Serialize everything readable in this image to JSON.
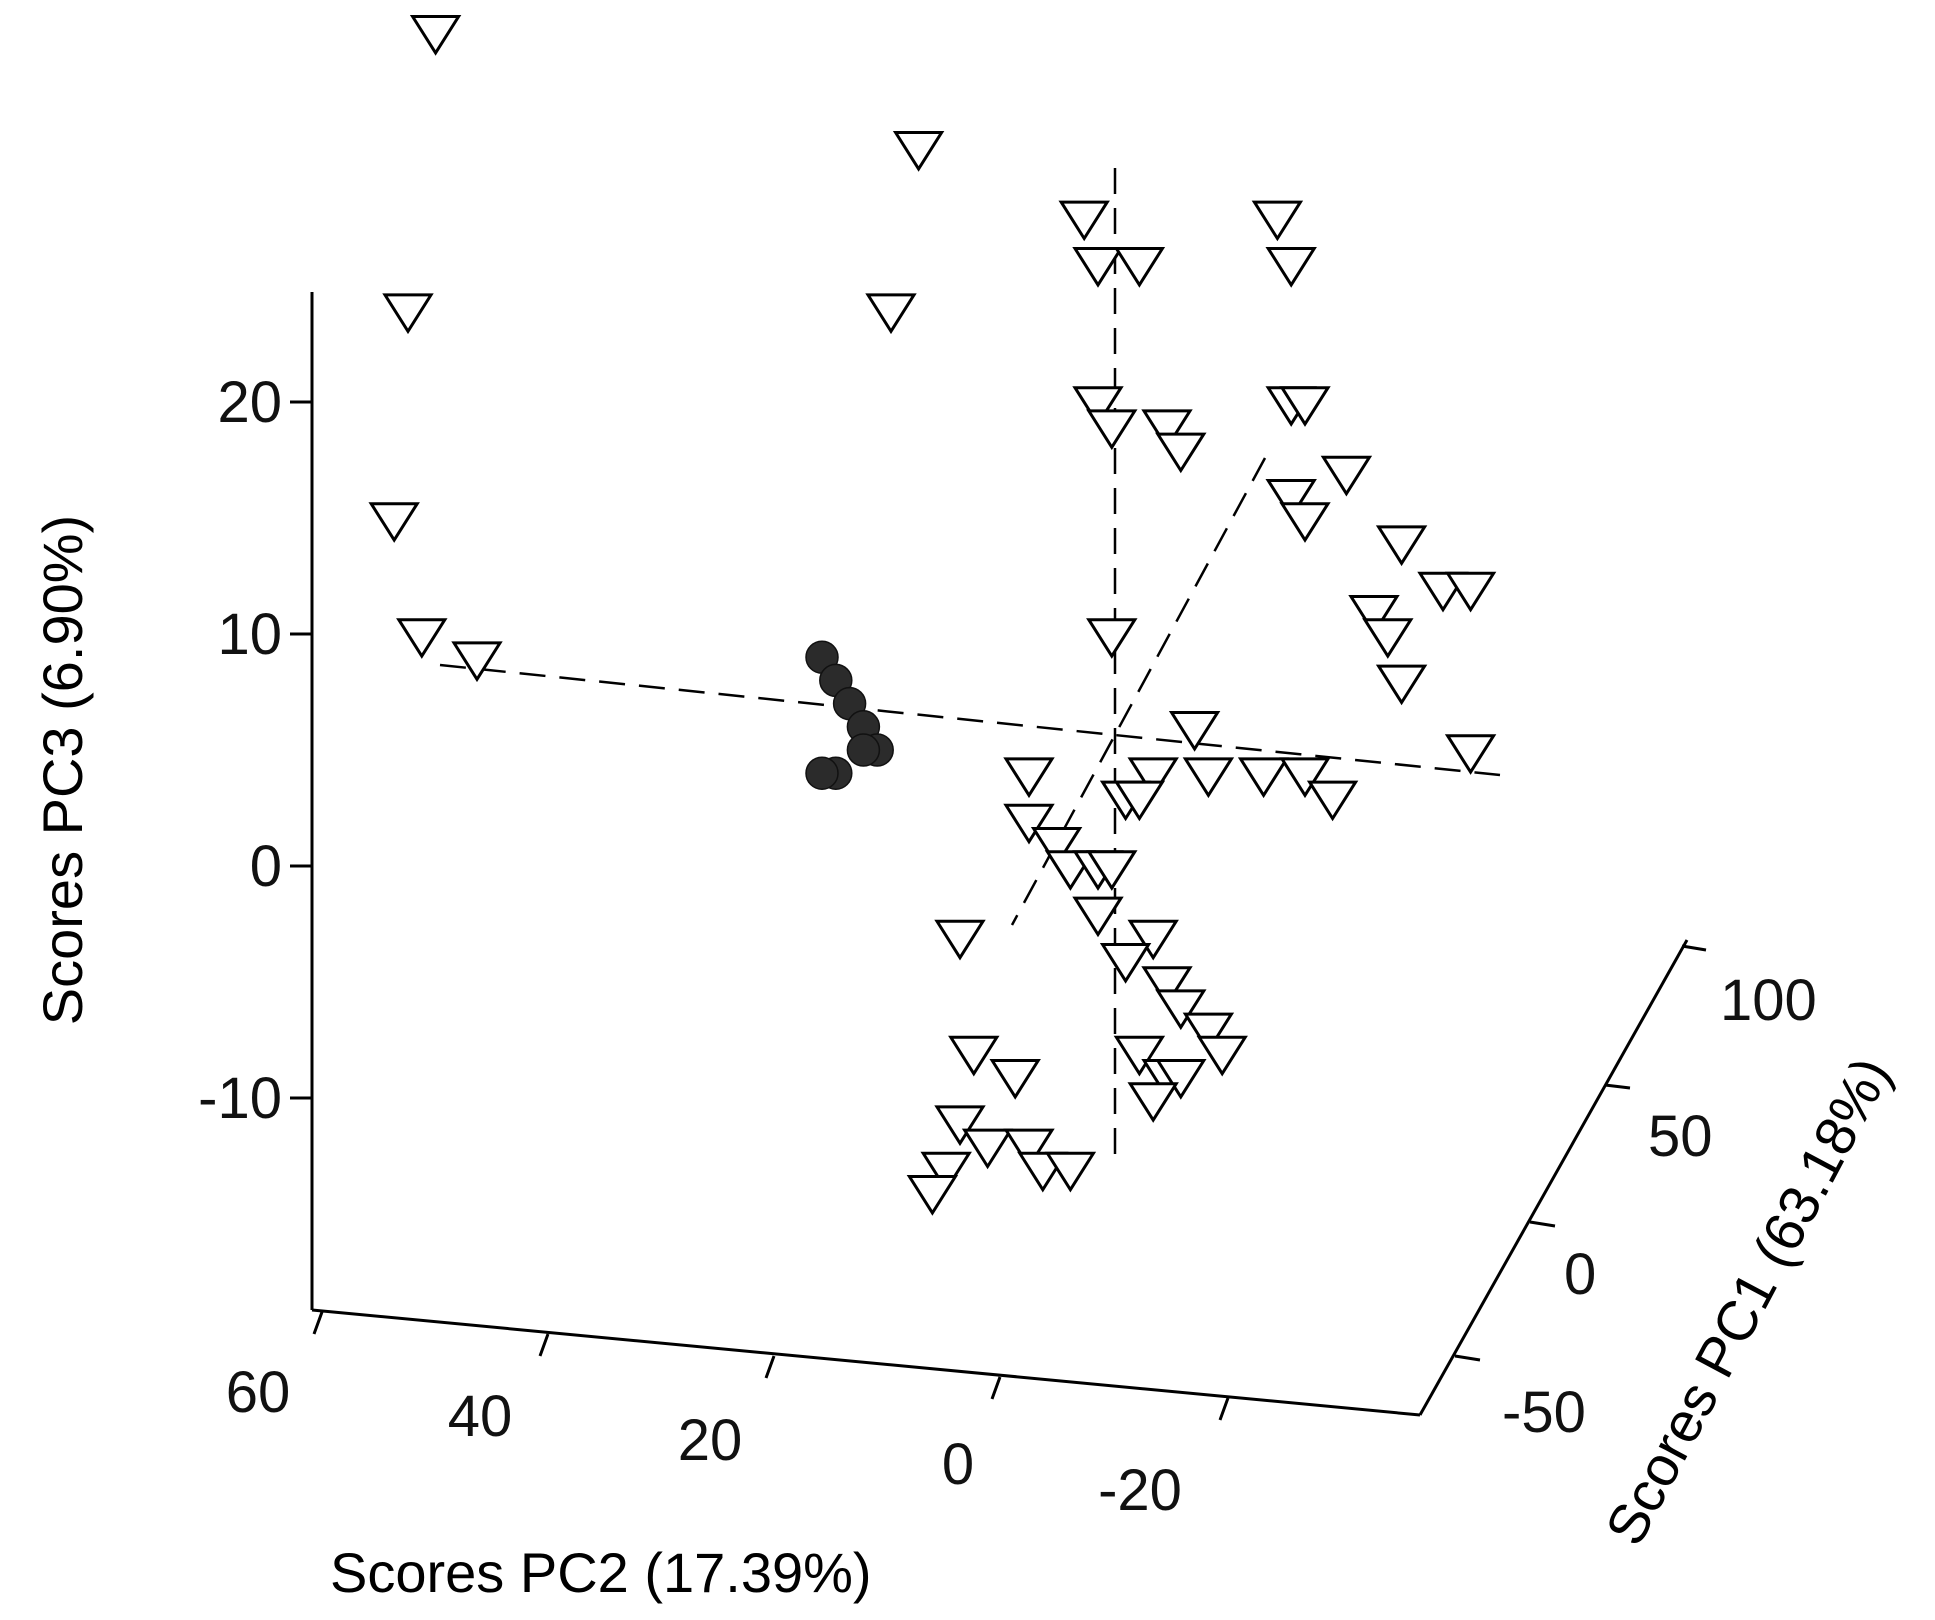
{
  "chart_data": {
    "type": "scatter",
    "projection": "3d",
    "xlabel": "Scores PC2 (17.39%)",
    "ylabel": "Scores PC3 (6.90%)",
    "zlabel": "Scores PC1 (63.18%)",
    "x_ticks": [
      "60",
      "40",
      "20",
      "0",
      "-20"
    ],
    "y_ticks": [
      "20",
      "10",
      "0",
      "-10"
    ],
    "z_ticks": [
      "100",
      "50",
      "0",
      "-50"
    ],
    "grid": false,
    "legend": "none",
    "series": [
      {
        "marker": "open-triangle-down",
        "color": "#000000",
        "points": [
          [
            38,
            36
          ],
          [
            3,
            31
          ],
          [
            -9,
            28
          ],
          [
            -10,
            26
          ],
          [
            -13,
            26
          ],
          [
            -23,
            28
          ],
          [
            -24,
            26
          ],
          [
            40,
            24
          ],
          [
            5,
            24
          ],
          [
            -10,
            20
          ],
          [
            -11,
            19
          ],
          [
            -15,
            19
          ],
          [
            -16,
            18
          ],
          [
            -24,
            20
          ],
          [
            -25,
            20
          ],
          [
            -24,
            16
          ],
          [
            -25,
            15
          ],
          [
            -28,
            17
          ],
          [
            -32,
            14
          ],
          [
            -35,
            12
          ],
          [
            -37,
            12
          ],
          [
            41,
            15
          ],
          [
            39,
            10
          ],
          [
            35,
            9
          ],
          [
            -11,
            10
          ],
          [
            -30,
            11
          ],
          [
            -31,
            10
          ],
          [
            -32,
            8
          ],
          [
            -17,
            6
          ],
          [
            -14,
            4
          ],
          [
            -18,
            4
          ],
          [
            -22,
            4
          ],
          [
            -25,
            4
          ],
          [
            -12,
            3
          ],
          [
            -13,
            3
          ],
          [
            -5,
            4
          ],
          [
            -27,
            3
          ],
          [
            -37,
            5
          ],
          [
            -5,
            2
          ],
          [
            -7,
            1
          ],
          [
            -8,
            0
          ],
          [
            -10,
            0
          ],
          [
            -11,
            0
          ],
          [
            -10,
            -2
          ],
          [
            -14,
            -3
          ],
          [
            -12,
            -4
          ],
          [
            -15,
            -5
          ],
          [
            -16,
            -6
          ],
          [
            -18,
            -7
          ],
          [
            -19,
            -8
          ],
          [
            -13,
            -8
          ],
          [
            -15,
            -9
          ],
          [
            -16,
            -9
          ],
          [
            -14,
            -10
          ],
          [
            0,
            -3
          ],
          [
            -1,
            -8
          ],
          [
            -4,
            -9
          ],
          [
            0,
            -11
          ],
          [
            -2,
            -12
          ],
          [
            1,
            -13
          ],
          [
            2,
            -14
          ],
          [
            -5,
            -12
          ],
          [
            -6,
            -13
          ],
          [
            -8,
            -13
          ]
        ]
      },
      {
        "marker": "filled-circle",
        "color": "#2b2b2b",
        "points": [
          [
            10,
            9
          ],
          [
            9,
            8
          ],
          [
            8,
            7
          ],
          [
            7,
            6
          ],
          [
            6,
            5
          ],
          [
            7,
            5
          ],
          [
            9,
            4
          ],
          [
            10,
            4
          ]
        ]
      }
    ]
  }
}
